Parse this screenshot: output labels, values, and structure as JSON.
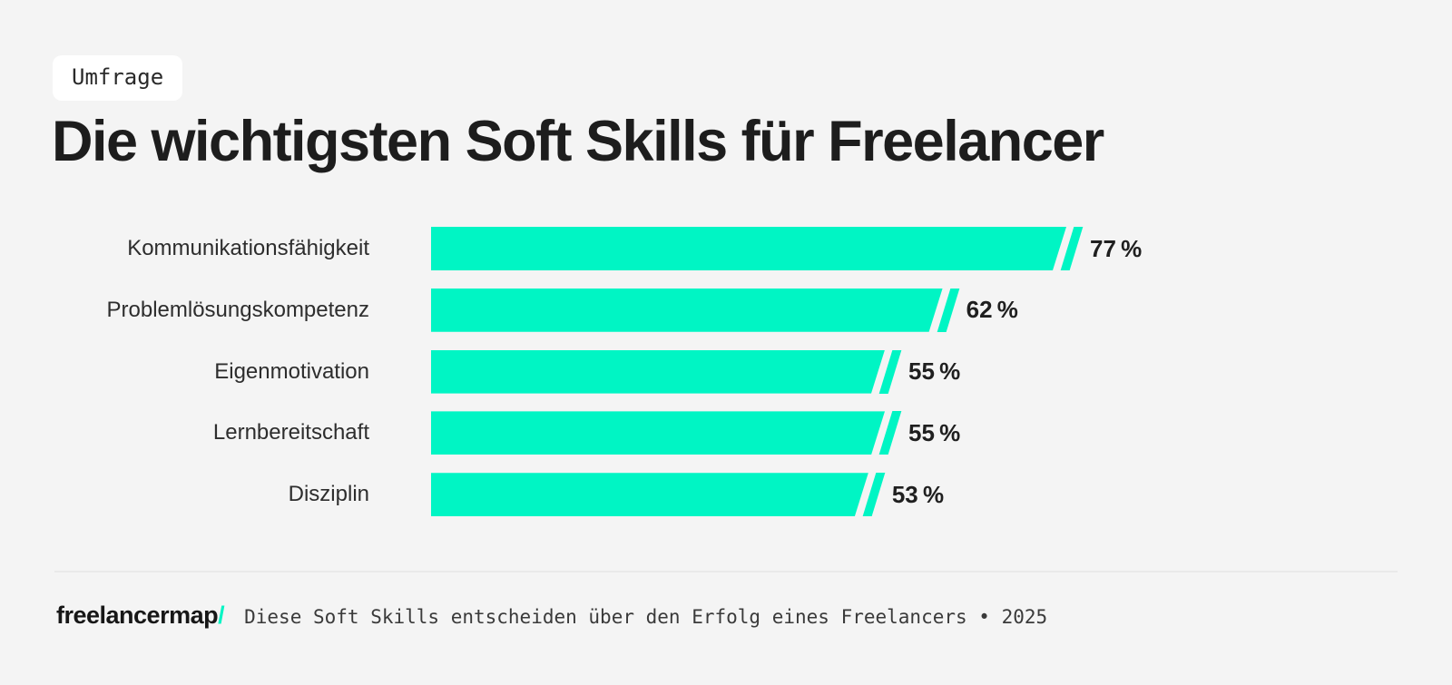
{
  "page": {
    "background": "#f4f4f4",
    "accent": "#00f5c4"
  },
  "badge": {
    "label": "Umfrage"
  },
  "title": "Die wichtigsten Soft Skills für Freelancer",
  "chart_data": {
    "type": "bar",
    "orientation": "horizontal",
    "title": "Die wichtigsten Soft Skills für Freelancer",
    "categories": [
      "Kommunikationsfähigkeit",
      "Problemlösungskompetenz",
      "Eigenmotivation",
      "Lernbereitschaft",
      "Disziplin"
    ],
    "values": [
      77,
      62,
      55,
      55,
      53
    ],
    "value_labels": [
      "77 %",
      "62 %",
      "55 %",
      "55 %",
      "53 %"
    ],
    "unit": "%",
    "xlim": [
      0,
      77
    ],
    "grid": false,
    "legend": false,
    "bar_color": "#00f5c4"
  },
  "footer": {
    "logo_text": "freelancermap",
    "logo_slash": "/",
    "tagline": "Diese Soft Skills entscheiden über den Erfolg eines Freelancers • 2025"
  }
}
